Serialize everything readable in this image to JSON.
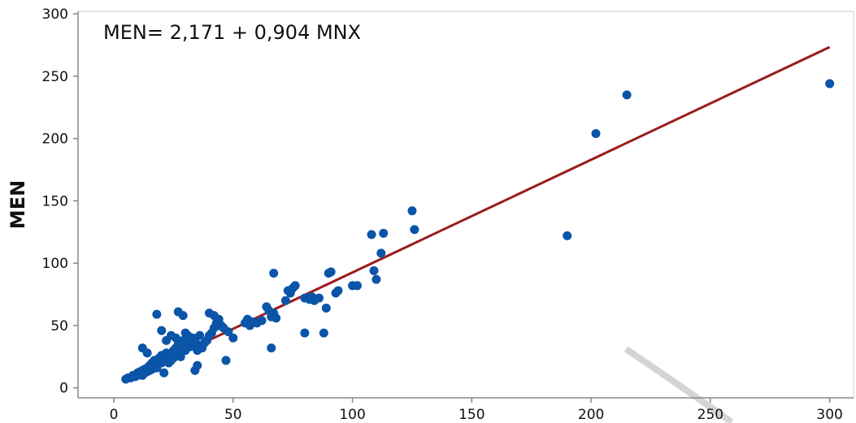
{
  "chart_data": {
    "type": "scatter",
    "annotation": "MEN= 2,171 + 0,904 MNX",
    "xlabel": "",
    "ylabel": "MEN",
    "xlim": [
      -15,
      310
    ],
    "ylim": [
      -8,
      302
    ],
    "xticks": [
      0,
      50,
      100,
      150,
      200,
      250,
      300
    ],
    "yticks": [
      0,
      50,
      100,
      150,
      200,
      250,
      300
    ],
    "grid": false,
    "colors": {
      "points": "#0a55a8",
      "fit_line": "#9b1c1c",
      "axis": "#888888"
    },
    "fit_line": {
      "intercept": 2.171,
      "slope": 0.904,
      "x_range": [
        5,
        300
      ]
    },
    "series": [
      {
        "points": [
          [
            5,
            7
          ],
          [
            6,
            8
          ],
          [
            7,
            8
          ],
          [
            8,
            9
          ],
          [
            8,
            10
          ],
          [
            9,
            9
          ],
          [
            10,
            10
          ],
          [
            10,
            12
          ],
          [
            11,
            11
          ],
          [
            11,
            13
          ],
          [
            12,
            14
          ],
          [
            12,
            10
          ],
          [
            13,
            12
          ],
          [
            13,
            15
          ],
          [
            14,
            13
          ],
          [
            14,
            16
          ],
          [
            15,
            14
          ],
          [
            15,
            18
          ],
          [
            16,
            15
          ],
          [
            16,
            20
          ],
          [
            17,
            17
          ],
          [
            17,
            22
          ],
          [
            18,
            19
          ],
          [
            18,
            16
          ],
          [
            19,
            21
          ],
          [
            19,
            24
          ],
          [
            20,
            20
          ],
          [
            20,
            26
          ],
          [
            21,
            22
          ],
          [
            21,
            12
          ],
          [
            22,
            24
          ],
          [
            22,
            28
          ],
          [
            23,
            25
          ],
          [
            23,
            20
          ],
          [
            24,
            27
          ],
          [
            24,
            22
          ],
          [
            25,
            30
          ],
          [
            25,
            24
          ],
          [
            26,
            26
          ],
          [
            26,
            32
          ],
          [
            27,
            28
          ],
          [
            27,
            35
          ],
          [
            28,
            30
          ],
          [
            28,
            25
          ],
          [
            29,
            32
          ],
          [
            29,
            38
          ],
          [
            30,
            34
          ],
          [
            30,
            30
          ],
          [
            31,
            36
          ],
          [
            31,
            42
          ],
          [
            32,
            38
          ],
          [
            32,
            33
          ],
          [
            33,
            40
          ],
          [
            33,
            36
          ],
          [
            34,
            38
          ],
          [
            34,
            14
          ],
          [
            35,
            18
          ],
          [
            35,
            30
          ],
          [
            36,
            34
          ],
          [
            37,
            32
          ],
          [
            38,
            36
          ],
          [
            39,
            38
          ],
          [
            40,
            42
          ],
          [
            41,
            44
          ],
          [
            42,
            48
          ],
          [
            43,
            52
          ],
          [
            44,
            55
          ],
          [
            45,
            50
          ],
          [
            46,
            48
          ],
          [
            47,
            22
          ],
          [
            48,
            45
          ],
          [
            50,
            40
          ],
          [
            12,
            32
          ],
          [
            14,
            28
          ],
          [
            20,
            46
          ],
          [
            22,
            38
          ],
          [
            24,
            42
          ],
          [
            26,
            40
          ],
          [
            28,
            36
          ],
          [
            30,
            44
          ],
          [
            32,
            40
          ],
          [
            36,
            42
          ],
          [
            18,
            59
          ],
          [
            27,
            61
          ],
          [
            29,
            58
          ],
          [
            40,
            60
          ],
          [
            42,
            58
          ],
          [
            44,
            50
          ],
          [
            55,
            52
          ],
          [
            56,
            55
          ],
          [
            57,
            50
          ],
          [
            58,
            53
          ],
          [
            60,
            52
          ],
          [
            62,
            54
          ],
          [
            64,
            65
          ],
          [
            65,
            62
          ],
          [
            66,
            57
          ],
          [
            67,
            60
          ],
          [
            68,
            56
          ],
          [
            66,
            32
          ],
          [
            67,
            92
          ],
          [
            72,
            70
          ],
          [
            73,
            78
          ],
          [
            74,
            76
          ],
          [
            75,
            80
          ],
          [
            76,
            82
          ],
          [
            80,
            72
          ],
          [
            81,
            72
          ],
          [
            82,
            71
          ],
          [
            83,
            73
          ],
          [
            84,
            70
          ],
          [
            86,
            72
          ],
          [
            80,
            44
          ],
          [
            88,
            44
          ],
          [
            89,
            64
          ],
          [
            90,
            92
          ],
          [
            91,
            93
          ],
          [
            93,
            76
          ],
          [
            94,
            78
          ],
          [
            100,
            82
          ],
          [
            102,
            82
          ],
          [
            108,
            123
          ],
          [
            109,
            94
          ],
          [
            110,
            87
          ],
          [
            112,
            108
          ],
          [
            113,
            124
          ],
          [
            125,
            142
          ],
          [
            126,
            127
          ],
          [
            190,
            122
          ],
          [
            202,
            204
          ],
          [
            215,
            235
          ],
          [
            300,
            244
          ]
        ]
      }
    ]
  }
}
